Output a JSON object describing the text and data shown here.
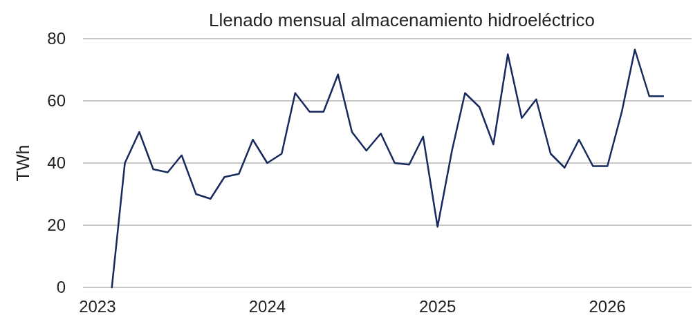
{
  "chart_data": {
    "type": "line",
    "title": "Llenado mensual almacenamiento hidroeléctrico",
    "ylabel": "TWh",
    "x": [
      "2023-02",
      "2023-03",
      "2023-04",
      "2023-05",
      "2023-06",
      "2023-07",
      "2023-08",
      "2023-09",
      "2023-10",
      "2023-11",
      "2023-12",
      "2024-01",
      "2024-02",
      "2024-03",
      "2024-04",
      "2024-05",
      "2024-06",
      "2024-07",
      "2024-08",
      "2024-09",
      "2024-10",
      "2024-11",
      "2024-12",
      "2025-01",
      "2025-02",
      "2025-03",
      "2025-04",
      "2025-05",
      "2025-06",
      "2025-07",
      "2025-08",
      "2025-09",
      "2025-10",
      "2025-11",
      "2025-12",
      "2026-01",
      "2026-02",
      "2026-03",
      "2026-04",
      "2026-05"
    ],
    "series": [
      {
        "color": "#172a5e",
        "values": [
          0,
          40,
          50,
          38,
          37,
          42.5,
          30,
          28.5,
          35.5,
          36.5,
          47.5,
          40,
          43,
          62.5,
          56.5,
          56.5,
          68.5,
          50,
          44,
          49.5,
          40,
          39.5,
          48.5,
          19.5,
          44,
          62.5,
          58,
          46,
          75,
          54.5,
          60.5,
          43,
          38.5,
          47.5,
          39,
          39,
          56.5,
          76.5,
          61.5,
          61.5
        ]
      }
    ],
    "xlim": [
      "2022-12",
      "2026-07"
    ],
    "xticks": [
      {
        "value": "2023-01",
        "label": "2023"
      },
      {
        "value": "2024-01",
        "label": "2024"
      },
      {
        "value": "2025-01",
        "label": "2025"
      },
      {
        "value": "2026-01",
        "label": "2026"
      }
    ],
    "ylim": [
      0,
      80
    ],
    "yticks": [
      0,
      20,
      40,
      60,
      80
    ],
    "grid": "y",
    "marker": "none",
    "line_style": "solid"
  }
}
